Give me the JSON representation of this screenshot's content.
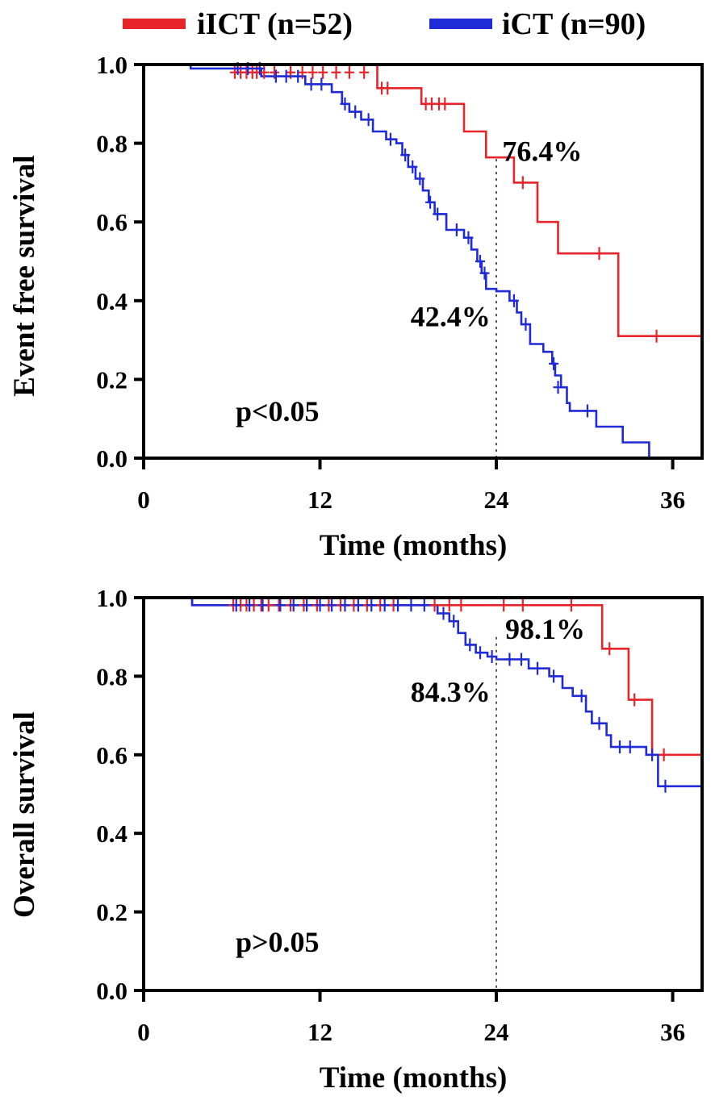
{
  "legend": [
    {
      "label": "iICT (n=52)",
      "color": "#e8242b"
    },
    {
      "label": "iCT (n=90)",
      "color": "#1f2ad8"
    }
  ],
  "chart_data": [
    {
      "type": "line",
      "subtype": "kaplan-meier",
      "xlabel": "Time (months)",
      "ylabel": "Event free survival",
      "xlim": [
        0,
        38
      ],
      "ylim": [
        0,
        1.0
      ],
      "xticks": [
        0,
        12,
        24,
        36
      ],
      "xtick_labels": [
        "0",
        "12",
        "24",
        "36"
      ],
      "yticks": [
        0,
        0.2,
        0.4,
        0.6,
        0.8,
        1.0
      ],
      "ytick_labels": [
        "0.0",
        "0.2",
        "0.4",
        "0.6",
        "0.8",
        "1.0"
      ],
      "reference_x": 24,
      "p_value_label": "p<0.05",
      "annotations": [
        {
          "text": "76.4%",
          "x": 24.4,
          "y": 0.78,
          "anchor": "start"
        },
        {
          "text": "42.4%",
          "x": 23.6,
          "y": 0.36,
          "anchor": "end"
        }
      ],
      "series": [
        {
          "name": "iICT (n=52)",
          "color": "#e8242b",
          "steps": [
            [
              0,
              1.0
            ],
            [
              15.9,
              0.94
            ],
            [
              18.9,
              0.9
            ],
            [
              21.8,
              0.83
            ],
            [
              23.3,
              0.764
            ],
            [
              25.2,
              0.7
            ],
            [
              26.8,
              0.6
            ],
            [
              28.2,
              0.52
            ],
            [
              32.3,
              0.31
            ],
            [
              38,
              0.31
            ]
          ],
          "censors": [
            [
              6.2,
              0.98
            ],
            [
              6.6,
              0.98
            ],
            [
              7.0,
              0.98
            ],
            [
              7.4,
              0.98
            ],
            [
              7.7,
              0.98
            ],
            [
              8.2,
              0.98
            ],
            [
              8.9,
              0.98
            ],
            [
              10.0,
              0.98
            ],
            [
              10.8,
              0.98
            ],
            [
              11.5,
              0.98
            ],
            [
              12.2,
              0.98
            ],
            [
              13.1,
              0.98
            ],
            [
              14.0,
              0.98
            ],
            [
              15.0,
              0.98
            ],
            [
              16.2,
              0.94
            ],
            [
              16.6,
              0.94
            ],
            [
              19.2,
              0.9
            ],
            [
              19.6,
              0.9
            ],
            [
              20.1,
              0.9
            ],
            [
              20.5,
              0.9
            ],
            [
              25.8,
              0.7
            ],
            [
              31.0,
              0.52
            ],
            [
              34.9,
              0.31
            ]
          ]
        },
        {
          "name": "iCT (n=90)",
          "color": "#1f2ad8",
          "steps": [
            [
              0,
              1.0
            ],
            [
              3.2,
              0.99
            ],
            [
              8.0,
              0.97
            ],
            [
              11.0,
              0.95
            ],
            [
              12.8,
              0.93
            ],
            [
              13.5,
              0.9
            ],
            [
              14.0,
              0.88
            ],
            [
              14.8,
              0.86
            ],
            [
              15.6,
              0.83
            ],
            [
              16.5,
              0.81
            ],
            [
              17.2,
              0.8
            ],
            [
              17.6,
              0.77
            ],
            [
              18.0,
              0.74
            ],
            [
              18.5,
              0.71
            ],
            [
              19.0,
              0.68
            ],
            [
              19.4,
              0.65
            ],
            [
              19.8,
              0.62
            ],
            [
              20.6,
              0.58
            ],
            [
              21.8,
              0.56
            ],
            [
              22.3,
              0.53
            ],
            [
              22.7,
              0.5
            ],
            [
              23.0,
              0.47
            ],
            [
              23.3,
              0.43
            ],
            [
              24.0,
              0.424
            ],
            [
              24.9,
              0.4
            ],
            [
              25.4,
              0.37
            ],
            [
              25.7,
              0.34
            ],
            [
              26.3,
              0.29
            ],
            [
              27.2,
              0.27
            ],
            [
              27.8,
              0.24
            ],
            [
              28.0,
              0.21
            ],
            [
              28.4,
              0.18
            ],
            [
              28.8,
              0.14
            ],
            [
              29.0,
              0.12
            ],
            [
              30.8,
              0.08
            ],
            [
              32.6,
              0.04
            ],
            [
              34.4,
              0.0
            ]
          ],
          "censors": [
            [
              6.4,
              0.99
            ],
            [
              7.1,
              0.99
            ],
            [
              7.9,
              0.99
            ],
            [
              9.0,
              0.97
            ],
            [
              9.7,
              0.97
            ],
            [
              10.5,
              0.97
            ],
            [
              11.4,
              0.95
            ],
            [
              12.1,
              0.95
            ],
            [
              13.7,
              0.9
            ],
            [
              14.4,
              0.88
            ],
            [
              15.3,
              0.86
            ],
            [
              16.8,
              0.81
            ],
            [
              17.8,
              0.77
            ],
            [
              18.3,
              0.74
            ],
            [
              18.8,
              0.71
            ],
            [
              19.5,
              0.65
            ],
            [
              20.0,
              0.62
            ],
            [
              21.3,
              0.58
            ],
            [
              22.1,
              0.56
            ],
            [
              22.9,
              0.5
            ],
            [
              23.2,
              0.47
            ],
            [
              25.2,
              0.4
            ],
            [
              26.0,
              0.34
            ],
            [
              27.9,
              0.24
            ],
            [
              28.2,
              0.18
            ],
            [
              30.2,
              0.12
            ]
          ]
        }
      ]
    },
    {
      "type": "line",
      "subtype": "kaplan-meier",
      "xlabel": "Time (months)",
      "ylabel": "Overall survival",
      "xlim": [
        0,
        38
      ],
      "ylim": [
        0,
        1.0
      ],
      "xticks": [
        0,
        12,
        24,
        36
      ],
      "xtick_labels": [
        "0",
        "12",
        "24",
        "36"
      ],
      "yticks": [
        0,
        0.2,
        0.4,
        0.6,
        0.8,
        1.0
      ],
      "ytick_labels": [
        "0.0",
        "0.2",
        "0.4",
        "0.6",
        "0.8",
        "1.0"
      ],
      "reference_x": 24,
      "p_value_label": "p>0.05",
      "annotations": [
        {
          "text": "98.1%",
          "x": 24.6,
          "y": 0.92,
          "anchor": "start"
        },
        {
          "text": "84.3%",
          "x": 23.6,
          "y": 0.76,
          "anchor": "end"
        }
      ],
      "series": [
        {
          "name": "iICT (n=52)",
          "color": "#e8242b",
          "steps": [
            [
              0,
              1.0
            ],
            [
              3.3,
              0.981
            ],
            [
              31.2,
              0.87
            ],
            [
              33.0,
              0.74
            ],
            [
              34.6,
              0.6
            ],
            [
              38,
              0.6
            ]
          ],
          "censors": [
            [
              6.1,
              0.981
            ],
            [
              6.6,
              0.981
            ],
            [
              7.0,
              0.981
            ],
            [
              7.5,
              0.981
            ],
            [
              8.0,
              0.981
            ],
            [
              8.5,
              0.981
            ],
            [
              9.2,
              0.981
            ],
            [
              10.0,
              0.981
            ],
            [
              10.9,
              0.981
            ],
            [
              11.8,
              0.981
            ],
            [
              12.6,
              0.981
            ],
            [
              13.4,
              0.981
            ],
            [
              14.3,
              0.981
            ],
            [
              15.2,
              0.981
            ],
            [
              16.1,
              0.981
            ],
            [
              17.0,
              0.981
            ],
            [
              19.8,
              0.981
            ],
            [
              20.8,
              0.981
            ],
            [
              21.6,
              0.981
            ],
            [
              24.5,
              0.981
            ],
            [
              25.8,
              0.981
            ],
            [
              29.1,
              0.981
            ],
            [
              31.7,
              0.87
            ],
            [
              33.4,
              0.74
            ],
            [
              35.4,
              0.6
            ]
          ]
        },
        {
          "name": "iCT (n=90)",
          "color": "#1f2ad8",
          "steps": [
            [
              0,
              1.0
            ],
            [
              3.3,
              0.981
            ],
            [
              20.0,
              0.96
            ],
            [
              20.8,
              0.94
            ],
            [
              21.4,
              0.91
            ],
            [
              21.9,
              0.88
            ],
            [
              22.6,
              0.86
            ],
            [
              23.4,
              0.85
            ],
            [
              24.0,
              0.843
            ],
            [
              26.2,
              0.82
            ],
            [
              27.6,
              0.8
            ],
            [
              28.5,
              0.77
            ],
            [
              29.2,
              0.75
            ],
            [
              30.1,
              0.71
            ],
            [
              30.5,
              0.68
            ],
            [
              31.5,
              0.65
            ],
            [
              31.8,
              0.62
            ],
            [
              34.2,
              0.6
            ],
            [
              35.0,
              0.52
            ],
            [
              38,
              0.52
            ]
          ],
          "censors": [
            [
              6.3,
              0.981
            ],
            [
              7.2,
              0.981
            ],
            [
              8.1,
              0.981
            ],
            [
              9.3,
              0.981
            ],
            [
              10.2,
              0.981
            ],
            [
              11.1,
              0.981
            ],
            [
              12.0,
              0.981
            ],
            [
              12.8,
              0.981
            ],
            [
              13.7,
              0.981
            ],
            [
              14.6,
              0.981
            ],
            [
              15.5,
              0.981
            ],
            [
              16.4,
              0.981
            ],
            [
              17.3,
              0.981
            ],
            [
              18.2,
              0.981
            ],
            [
              19.1,
              0.981
            ],
            [
              20.4,
              0.96
            ],
            [
              21.1,
              0.94
            ],
            [
              22.2,
              0.88
            ],
            [
              22.9,
              0.86
            ],
            [
              23.7,
              0.85
            ],
            [
              24.9,
              0.843
            ],
            [
              25.7,
              0.843
            ],
            [
              26.8,
              0.82
            ],
            [
              27.9,
              0.8
            ],
            [
              29.8,
              0.75
            ],
            [
              31.0,
              0.68
            ],
            [
              32.4,
              0.62
            ],
            [
              33.1,
              0.62
            ],
            [
              34.6,
              0.6
            ],
            [
              35.5,
              0.52
            ]
          ]
        }
      ]
    }
  ]
}
